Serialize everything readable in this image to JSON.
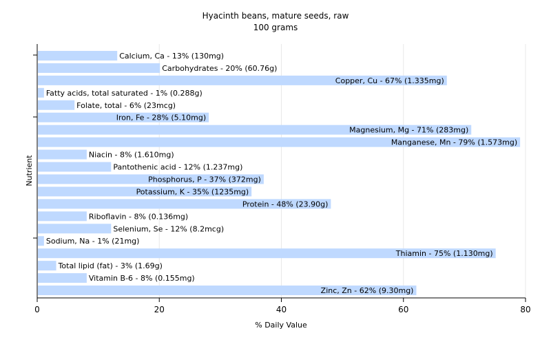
{
  "chart_data": {
    "type": "bar",
    "orientation": "horizontal",
    "title": "Hyacinth beans, mature seeds, raw",
    "subtitle": "100 grams",
    "xlabel": "% Daily Value",
    "ylabel": "Nutrient",
    "xlim": [
      0,
      80
    ],
    "xticks": [
      "0",
      "20",
      "40",
      "60",
      "80"
    ],
    "grid": "vertical",
    "bar_color": "#bfd9ff",
    "categories": [
      "Calcium, Ca",
      "Carbohydrates",
      "Copper, Cu",
      "Fatty acids, total saturated",
      "Folate, total",
      "Iron, Fe",
      "Magnesium, Mg",
      "Manganese, Mn",
      "Niacin",
      "Pantothenic acid",
      "Phosphorus, P",
      "Potassium, K",
      "Protein",
      "Riboflavin",
      "Selenium, Se",
      "Sodium, Na",
      "Thiamin",
      "Total lipid (fat)",
      "Vitamin B-6",
      "Zinc, Zn"
    ],
    "values": [
      13,
      20,
      67,
      1,
      6,
      28,
      71,
      79,
      8,
      12,
      37,
      35,
      48,
      8,
      12,
      1,
      75,
      3,
      8,
      62
    ],
    "bar_labels": [
      "Calcium, Ca - 13% (130mg)",
      "Carbohydrates - 20% (60.76g)",
      "Copper, Cu - 67% (1.335mg)",
      "Fatty acids, total saturated - 1% (0.288g)",
      "Folate, total - 6% (23mcg)",
      "Iron, Fe - 28% (5.10mg)",
      "Magnesium, Mg - 71% (283mg)",
      "Manganese, Mn - 79% (1.573mg)",
      "Niacin - 8% (1.610mg)",
      "Pantothenic acid - 12% (1.237mg)",
      "Phosphorus, P - 37% (372mg)",
      "Potassium, K - 35% (1235mg)",
      "Protein - 48% (23.90g)",
      "Riboflavin - 8% (0.136mg)",
      "Selenium, Se - 12% (8.2mcg)",
      "Sodium, Na - 1% (21mg)",
      "Thiamin - 75% (1.130mg)",
      "Total lipid (fat) - 3% (1.69g)",
      "Vitamin B-6 - 8% (0.155mg)",
      "Zinc, Zn - 62% (9.30mg)"
    ]
  }
}
